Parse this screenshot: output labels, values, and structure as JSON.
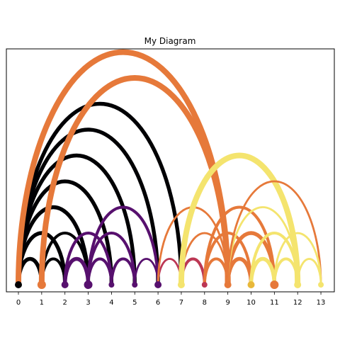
{
  "title": "My Diagram",
  "chart_data": {
    "type": "arc-diagram",
    "title": "My Diagram",
    "x_ticks": [
      "0",
      "1",
      "2",
      "3",
      "4",
      "5",
      "6",
      "7",
      "8",
      "9",
      "10",
      "11",
      "12",
      "13"
    ],
    "xlim": [
      -0.3,
      13.3
    ],
    "palette": {
      "black": "#000004",
      "purple": "#57106e",
      "magenta": "#bc3754",
      "orange": "#e6793a",
      "yellow": "#f4e46e",
      "node_mid": "#e8b83a"
    },
    "nodes": [
      {
        "x": 0,
        "color": "black",
        "size": 5
      },
      {
        "x": 1,
        "color": "orange",
        "size": 6
      },
      {
        "x": 2,
        "color": "purple",
        "size": 5
      },
      {
        "x": 3,
        "color": "purple",
        "size": 6
      },
      {
        "x": 4,
        "color": "purple",
        "size": 4
      },
      {
        "x": 5,
        "color": "purple",
        "size": 4
      },
      {
        "x": 6,
        "color": "purple",
        "size": 5
      },
      {
        "x": 7,
        "color": "yellow",
        "size": 5
      },
      {
        "x": 8,
        "color": "magenta",
        "size": 4
      },
      {
        "x": 9,
        "color": "orange",
        "size": 5
      },
      {
        "x": 10,
        "color": "node_mid",
        "size": 5
      },
      {
        "x": 11,
        "color": "orange",
        "size": 6
      },
      {
        "x": 12,
        "color": "yellow",
        "size": 5
      },
      {
        "x": 13,
        "color": "yellow",
        "size": 4
      }
    ],
    "links": [
      {
        "source": 0,
        "target": 1,
        "color": "black",
        "weight": 3
      },
      {
        "source": 0,
        "target": 2,
        "color": "black",
        "weight": 3
      },
      {
        "source": 0,
        "target": 3,
        "color": "black",
        "weight": 3
      },
      {
        "source": 0,
        "target": 4,
        "color": "black",
        "weight": 3
      },
      {
        "source": 0,
        "target": 5,
        "color": "black",
        "weight": 3
      },
      {
        "source": 0,
        "target": 6,
        "color": "black",
        "weight": 3
      },
      {
        "source": 0,
        "target": 7,
        "color": "black",
        "weight": 3
      },
      {
        "source": 0,
        "target": 9,
        "color": "orange",
        "weight": 5
      },
      {
        "source": 1,
        "target": 2,
        "color": "black",
        "weight": 2
      },
      {
        "source": 1,
        "target": 3,
        "color": "black",
        "weight": 2
      },
      {
        "source": 1,
        "target": 9,
        "color": "orange",
        "weight": 5
      },
      {
        "source": 2,
        "target": 3,
        "color": "purple",
        "weight": 3
      },
      {
        "source": 2,
        "target": 4,
        "color": "purple",
        "weight": 2
      },
      {
        "source": 3,
        "target": 4,
        "color": "purple",
        "weight": 2
      },
      {
        "source": 3,
        "target": 5,
        "color": "purple",
        "weight": 2
      },
      {
        "source": 3,
        "target": 6,
        "color": "purple",
        "weight": 2
      },
      {
        "source": 4,
        "target": 5,
        "color": "purple",
        "weight": 2
      },
      {
        "source": 5,
        "target": 6,
        "color": "purple",
        "weight": 1
      },
      {
        "source": 6,
        "target": 7,
        "color": "magenta",
        "weight": 1
      },
      {
        "source": 6,
        "target": 9,
        "color": "orange",
        "weight": 1
      },
      {
        "source": 7,
        "target": 8,
        "color": "magenta",
        "weight": 2
      },
      {
        "source": 7,
        "target": 9,
        "color": "orange",
        "weight": 1
      },
      {
        "source": 7,
        "target": 12,
        "color": "yellow",
        "weight": 5
      },
      {
        "source": 8,
        "target": 9,
        "color": "orange",
        "weight": 2
      },
      {
        "source": 8,
        "target": 10,
        "color": "orange",
        "weight": 2
      },
      {
        "source": 8,
        "target": 11,
        "color": "orange",
        "weight": 2
      },
      {
        "source": 9,
        "target": 10,
        "color": "orange",
        "weight": 3
      },
      {
        "source": 9,
        "target": 11,
        "color": "orange",
        "weight": 3
      },
      {
        "source": 9,
        "target": 12,
        "color": "yellow",
        "weight": 1
      },
      {
        "source": 9,
        "target": 13,
        "color": "orange",
        "weight": 1
      },
      {
        "source": 10,
        "target": 11,
        "color": "yellow",
        "weight": 3
      },
      {
        "source": 10,
        "target": 12,
        "color": "yellow",
        "weight": 2
      },
      {
        "source": 11,
        "target": 12,
        "color": "yellow",
        "weight": 2
      },
      {
        "source": 11,
        "target": 13,
        "color": "yellow",
        "weight": 1
      },
      {
        "source": 12,
        "target": 13,
        "color": "yellow",
        "weight": 1
      }
    ]
  }
}
